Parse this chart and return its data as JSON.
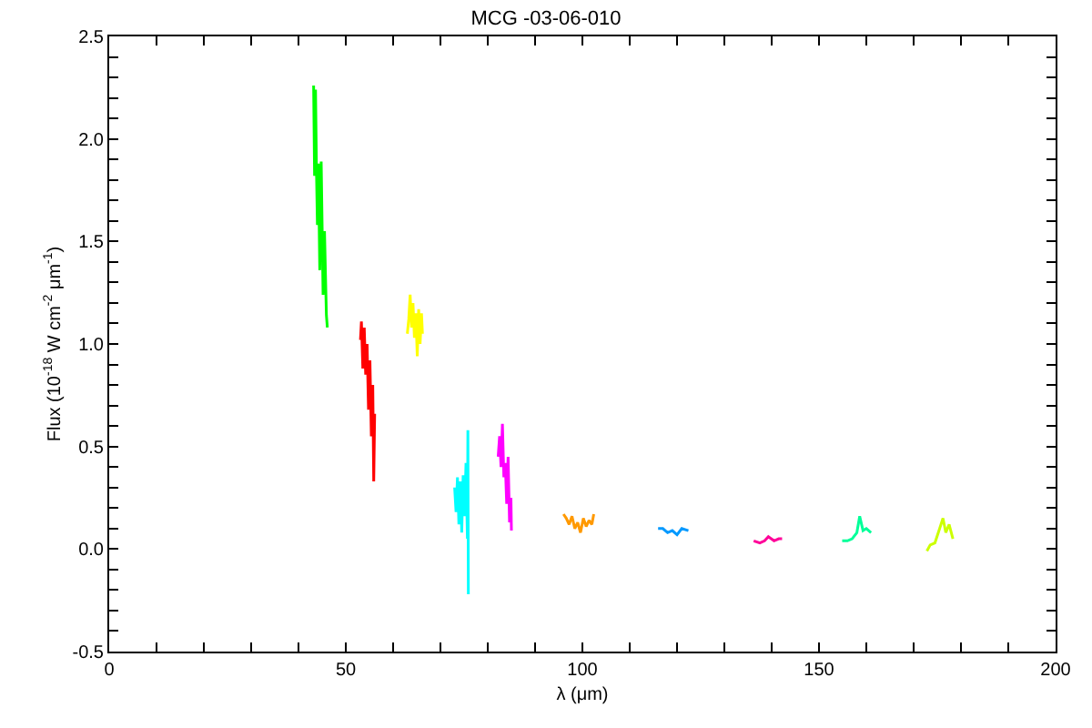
{
  "chart_data": {
    "type": "line",
    "title": "MCG -03-06-010",
    "xlabel": "λ (μm)",
    "ylabel": "Flux (10$^{-18}$ W cm$^{-2}$ μm$^{-1}$)",
    "xlim": [
      0,
      200
    ],
    "ylim": [
      -0.5,
      2.5
    ],
    "xticks": [
      0,
      {
        "value": 10,
        "label": null
      },
      {
        "value": 20,
        "label": null
      },
      {
        "value": 30,
        "label": null
      },
      {
        "value": 40,
        "label": null
      },
      50,
      {
        "value": 60,
        "label": null
      },
      {
        "value": 70,
        "label": null
      },
      {
        "value": 80,
        "label": null
      },
      {
        "value": 90,
        "label": null
      },
      100,
      {
        "value": 110,
        "label": null
      },
      {
        "value": 120,
        "label": null
      },
      {
        "value": 130,
        "label": null
      },
      {
        "value": 140,
        "label": null
      },
      150,
      {
        "value": 160,
        "label": null
      },
      {
        "value": 170,
        "label": null
      },
      {
        "value": 180,
        "label": null
      },
      {
        "value": 190,
        "label": null
      },
      200
    ],
    "yticks": [
      {
        "value": -0.5,
        "label": "-0.5"
      },
      {
        "value": -0.4,
        "label": null
      },
      {
        "value": -0.3,
        "label": null
      },
      {
        "value": -0.2,
        "label": null
      },
      {
        "value": -0.1,
        "label": null
      },
      {
        "value": 0,
        "label": "0.0"
      },
      {
        "value": 0.1,
        "label": null
      },
      {
        "value": 0.2,
        "label": null
      },
      {
        "value": 0.3,
        "label": null
      },
      {
        "value": 0.4,
        "label": null
      },
      0.5,
      {
        "value": 0.6,
        "label": null
      },
      {
        "value": 0.7,
        "label": null
      },
      {
        "value": 0.8,
        "label": null
      },
      {
        "value": 0.9,
        "label": null
      },
      {
        "value": 1,
        "label": "1.0"
      },
      {
        "value": 1.1,
        "label": null
      },
      {
        "value": 1.2,
        "label": null
      },
      {
        "value": 1.3,
        "label": null
      },
      {
        "value": 1.4,
        "label": null
      },
      1.5,
      {
        "value": 1.6,
        "label": null
      },
      {
        "value": 1.7,
        "label": null
      },
      {
        "value": 1.8,
        "label": null
      },
      {
        "value": 1.9,
        "label": null
      },
      {
        "value": 2,
        "label": "2.0"
      },
      {
        "value": 2.1,
        "label": null
      },
      {
        "value": 2.2,
        "label": null
      },
      {
        "value": 2.3,
        "label": null
      },
      {
        "value": 2.4,
        "label": null
      },
      2.5
    ],
    "legend": false,
    "marker": "none",
    "line_style": "solid",
    "series": [
      {
        "color": "#00ff00",
        "x": [
          43.2,
          43.4,
          43.6,
          43.8,
          44.0,
          44.2,
          44.5,
          44.8,
          45.0,
          45.2,
          45.5,
          45.7,
          45.9,
          46.1
        ],
        "values": [
          2.26,
          1.82,
          2.24,
          1.85,
          1.58,
          1.88,
          1.36,
          1.89,
          1.57,
          1.24,
          1.55,
          1.34,
          1.14,
          1.08
        ]
      },
      {
        "color": "#ff0000",
        "x": [
          53.1,
          53.3,
          53.6,
          53.9,
          54.2,
          54.5,
          54.8,
          55.1,
          55.4,
          55.7,
          55.9,
          56.1
        ],
        "values": [
          1.02,
          1.11,
          0.88,
          1.08,
          0.85,
          1.0,
          0.68,
          0.92,
          0.55,
          0.8,
          0.33,
          0.66
        ]
      },
      {
        "color": "#ffff00",
        "x": [
          63.0,
          63.3,
          63.6,
          63.9,
          64.2,
          64.5,
          64.8,
          65.1,
          65.4,
          65.7,
          66.0,
          66.2
        ],
        "values": [
          1.05,
          1.12,
          1.24,
          1.08,
          1.2,
          1.03,
          1.15,
          0.94,
          1.17,
          1.0,
          1.15,
          1.05
        ]
      },
      {
        "color": "#00ffff",
        "x": [
          73.0,
          73.3,
          73.6,
          73.9,
          74.2,
          74.5,
          74.8,
          75.1,
          75.4,
          75.7,
          75.8,
          75.9
        ],
        "values": [
          0.3,
          0.18,
          0.35,
          0.12,
          0.33,
          0.08,
          0.36,
          0.16,
          0.42,
          0.05,
          0.58,
          -0.22
        ]
      },
      {
        "color": "#ff00ff",
        "x": [
          82.2,
          82.5,
          82.8,
          83.1,
          83.4,
          83.7,
          84.0,
          84.3,
          84.6,
          84.9,
          85.0
        ],
        "values": [
          0.45,
          0.55,
          0.4,
          0.61,
          0.35,
          0.42,
          0.22,
          0.45,
          0.13,
          0.25,
          0.09
        ]
      },
      {
        "color": "#ff9900",
        "x": [
          96.0,
          96.6,
          97.2,
          97.8,
          98.4,
          99.0,
          99.6,
          100.2,
          100.8,
          101.4,
          102.0,
          102.4
        ],
        "values": [
          0.17,
          0.15,
          0.12,
          0.16,
          0.1,
          0.13,
          0.08,
          0.15,
          0.11,
          0.14,
          0.12,
          0.17
        ]
      },
      {
        "color": "#0099ff",
        "x": [
          116,
          117,
          118,
          119,
          120,
          121,
          122.4
        ],
        "values": [
          0.1,
          0.1,
          0.08,
          0.09,
          0.07,
          0.1,
          0.09
        ]
      },
      {
        "color": "#ff0099",
        "x": [
          136.2,
          137.5,
          138.5,
          139.3,
          140.5,
          141.5,
          142.2
        ],
        "values": [
          0.04,
          0.03,
          0.04,
          0.06,
          0.04,
          0.05,
          0.05
        ]
      },
      {
        "color": "#00ff99",
        "x": [
          154.9,
          156,
          157,
          158,
          158.6,
          159.3,
          160,
          161
        ],
        "values": [
          0.04,
          0.04,
          0.05,
          0.08,
          0.16,
          0.09,
          0.1,
          0.08
        ]
      },
      {
        "color": "#ccff00",
        "x": [
          172.8,
          173.5,
          174.5,
          175.5,
          176.2,
          176.8,
          177.5,
          178.3
        ],
        "values": [
          -0.01,
          0.02,
          0.03,
          0.1,
          0.15,
          0.08,
          0.12,
          0.05
        ]
      }
    ]
  }
}
